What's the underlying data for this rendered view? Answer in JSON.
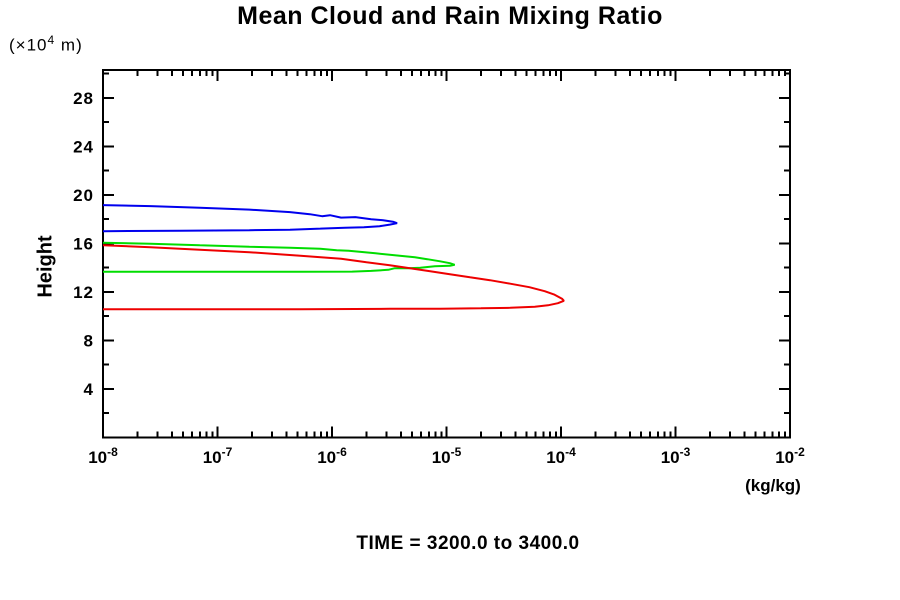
{
  "title": "Mean Cloud and Rain Mixing Ratio",
  "caption": "TIME = 3200.0 to 3400.0",
  "axes": {
    "y_label": "Height",
    "y_unit_prefix": "(×10",
    "y_unit_exponent": "4",
    "y_unit_suffix": " m)",
    "x_unit": "(kg/kg)"
  },
  "chart_data": {
    "type": "line",
    "title": "Mean Cloud and Rain Mixing Ratio",
    "caption": "TIME = 3200.0 to 3400.0",
    "xlabel": "(kg/kg)",
    "ylabel": "Height",
    "y_unit": "(×10⁴ m)",
    "x_scale": "log",
    "x_tick_base": "10",
    "x_tick_exponents": [
      -8,
      -7,
      -6,
      -5,
      -4,
      -3,
      -2
    ],
    "xlim_exponents": [
      -8,
      -2
    ],
    "ylim": [
      0,
      30.3
    ],
    "y_major_ticks": [
      4,
      8,
      12,
      16,
      20,
      24,
      28
    ],
    "y_minor_step": 2,
    "grid": false,
    "legend": "none",
    "series_note": "points are [mixing_ratio_kg_per_kg, height_x10^4_m] traced along each closed profile",
    "series": [
      {
        "name": "profile-blue",
        "color": "#0000EE",
        "peak": {
          "value": 3.7e-06,
          "height": 17.7
        },
        "height_range": [
          17.0,
          19.2
        ],
        "points": [
          [
            1e-08,
            19.16
          ],
          [
            2.6e-08,
            19.08
          ],
          [
            7e-08,
            18.95
          ],
          [
            1.9e-07,
            18.79
          ],
          [
            4.3e-07,
            18.58
          ],
          [
            6.4e-07,
            18.41
          ],
          [
            8.2e-07,
            18.25
          ],
          [
            9.6e-07,
            18.33
          ],
          [
            1.2e-06,
            18.13
          ],
          [
            1.6e-06,
            18.17
          ],
          [
            2.2e-06,
            18.0
          ],
          [
            2.8e-06,
            17.92
          ],
          [
            3.4e-06,
            17.79
          ],
          [
            3.7e-06,
            17.67
          ],
          [
            3.2e-06,
            17.55
          ],
          [
            2.6e-06,
            17.42
          ],
          [
            1.9e-06,
            17.34
          ],
          [
            1.3e-06,
            17.3
          ],
          [
            7.9e-07,
            17.22
          ],
          [
            4.3e-07,
            17.13
          ],
          [
            1.9e-07,
            17.09
          ],
          [
            4.7e-08,
            17.05
          ],
          [
            1e-08,
            17.01
          ]
        ]
      },
      {
        "name": "profile-green",
        "color": "#00DD00",
        "peak": {
          "value": 1.2e-05,
          "height": 14.25
        },
        "height_range": [
          13.65,
          16.05
        ],
        "points": [
          [
            1e-08,
            16.06
          ],
          [
            2.6e-08,
            15.98
          ],
          [
            7e-08,
            15.85
          ],
          [
            1.9e-07,
            15.73
          ],
          [
            4.3e-07,
            15.65
          ],
          [
            7.9e-07,
            15.56
          ],
          [
            1.1e-06,
            15.44
          ],
          [
            1.4e-06,
            15.4
          ],
          [
            2.4e-06,
            15.19
          ],
          [
            3.9e-06,
            14.99
          ],
          [
            5.3e-06,
            14.86
          ],
          [
            6.8e-06,
            14.7
          ],
          [
            8.8e-06,
            14.53
          ],
          [
            1.07e-05,
            14.37
          ],
          [
            1.18e-05,
            14.24
          ],
          [
            1.07e-05,
            14.16
          ],
          [
            7.9e-06,
            14.12
          ],
          [
            5.9e-06,
            14.0
          ],
          [
            4.6e-06,
            13.95
          ],
          [
            3.5e-06,
            13.95
          ],
          [
            3.1e-06,
            13.83
          ],
          [
            2.2e-06,
            13.74
          ],
          [
            1.5e-06,
            13.68
          ],
          [
            5.3e-07,
            13.66
          ],
          [
            7e-08,
            13.66
          ],
          [
            1e-08,
            13.66
          ]
        ]
      },
      {
        "name": "profile-red",
        "color": "#EE0000",
        "peak": {
          "value": 0.000105,
          "height": 11.3
        },
        "height_range": [
          10.55,
          15.85
        ],
        "points": [
          [
            1e-08,
            15.85
          ],
          [
            2.6e-08,
            15.69
          ],
          [
            7e-08,
            15.48
          ],
          [
            1.9e-07,
            15.28
          ],
          [
            5.3e-07,
            14.99
          ],
          [
            1.2e-06,
            14.74
          ],
          [
            2e-06,
            14.45
          ],
          [
            3.2e-06,
            14.2
          ],
          [
            4.8e-06,
            13.96
          ],
          [
            7.2e-06,
            13.71
          ],
          [
            1.07e-05,
            13.46
          ],
          [
            1.6e-05,
            13.21
          ],
          [
            2.4e-05,
            12.97
          ],
          [
            3.6e-05,
            12.68
          ],
          [
            5.3e-05,
            12.39
          ],
          [
            7.2e-05,
            12.06
          ],
          [
            8.8e-05,
            11.77
          ],
          [
            0.000102,
            11.44
          ],
          [
            0.000106,
            11.27
          ],
          [
            9.4e-05,
            11.07
          ],
          [
            7.7e-05,
            10.9
          ],
          [
            5.9e-05,
            10.78
          ],
          [
            3.6e-05,
            10.69
          ],
          [
            2e-05,
            10.65
          ],
          [
            8.8e-06,
            10.61
          ],
          [
            3.2e-06,
            10.61
          ],
          [
            5.3e-07,
            10.57
          ],
          [
            7e-08,
            10.57
          ],
          [
            1e-08,
            10.57
          ]
        ]
      }
    ]
  }
}
